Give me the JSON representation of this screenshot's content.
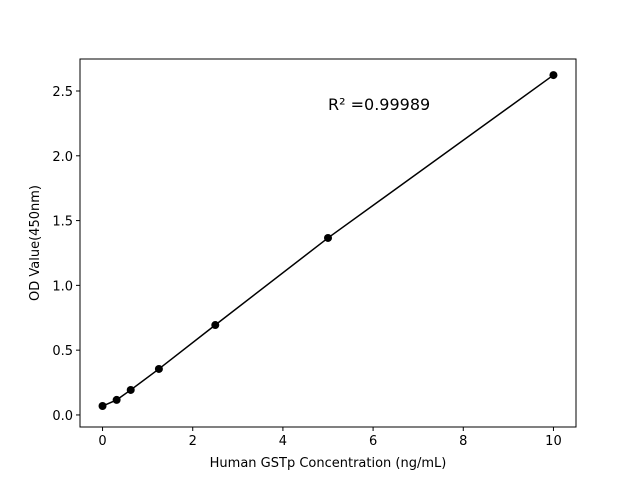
{
  "chart_data": {
    "type": "line",
    "xlabel": "Human GSTp Concentration (ng/mL)",
    "ylabel": "OD Value(450nm)",
    "annotation": {
      "text": "R² =0.99989",
      "x": 5,
      "y": 2.4
    },
    "x": [
      0,
      0.3125,
      0.625,
      1.25,
      2.5,
      5,
      10
    ],
    "series": [
      {
        "color": "#000000",
        "values": [
          0.069,
          0.116,
          0.193,
          0.355,
          0.694,
          1.366,
          2.623
        ]
      }
    ],
    "xlim": [
      -0.5,
      10.5
    ],
    "ylim": [
      -0.093,
      2.747
    ],
    "xticks": [
      0,
      2,
      4,
      6,
      8,
      10
    ],
    "yticks": [
      {
        "value": 0,
        "label": "0.0"
      },
      {
        "value": 0.5,
        "label": "0.5"
      },
      {
        "value": 1,
        "label": "1.0"
      },
      {
        "value": 1.5,
        "label": "1.5"
      },
      {
        "value": 2,
        "label": "2.0"
      },
      {
        "value": 2.5,
        "label": "2.5"
      }
    ]
  }
}
